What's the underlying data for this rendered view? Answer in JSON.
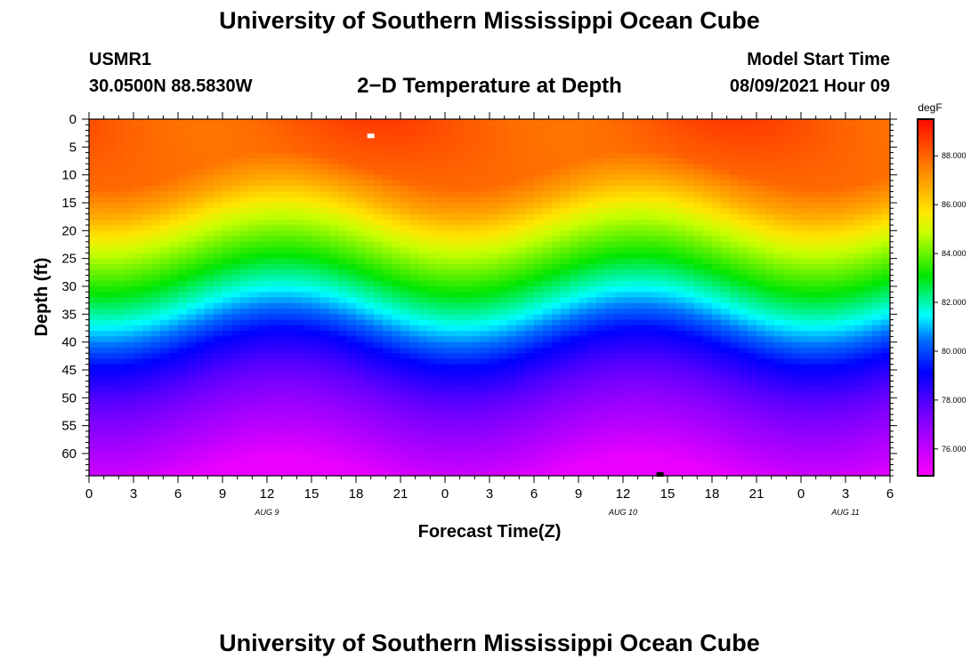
{
  "header": {
    "title": "University of Southern Mississippi Ocean Cube",
    "station": "USMR1",
    "coords": "30.0500N  88.5830W",
    "subtitle": "2−D Temperature at Depth",
    "model_label": "Model Start Time",
    "model_time": "08/09/2021 Hour 09"
  },
  "footer": {
    "title": "University of Southern Mississippi Ocean Cube"
  },
  "chart_data": {
    "type": "heatmap",
    "title": "2−D Temperature at Depth",
    "xlabel": "Forecast Time(Z)",
    "ylabel": "Depth (ft)",
    "x_ticks": [
      "0",
      "3",
      "6",
      "9",
      "12",
      "15",
      "18",
      "21",
      "0",
      "3",
      "6",
      "9",
      "12",
      "15",
      "18",
      "21",
      "0",
      "3",
      "6"
    ],
    "x_range_hours": [
      0,
      54
    ],
    "date_labels": [
      {
        "text": "AUG 9",
        "hour": 12
      },
      {
        "text": "AUG 10",
        "hour": 36
      },
      {
        "text": "AUG 11",
        "hour": 51
      }
    ],
    "y_ticks": [
      0,
      5,
      10,
      15,
      20,
      25,
      30,
      35,
      40,
      45,
      50,
      55,
      60
    ],
    "y_range_ft": [
      0,
      64
    ],
    "colorbar": {
      "unit": "degF",
      "ticks": [
        "76.000",
        "78.000",
        "80.000",
        "82.000",
        "84.000",
        "86.000",
        "88.000"
      ],
      "range": [
        74.9,
        89.5
      ]
    },
    "depth_profile": [
      {
        "depth": 0,
        "temp": 88.2
      },
      {
        "depth": 9,
        "temp": 87.9
      },
      {
        "depth": 14,
        "temp": 86.8
      },
      {
        "depth": 20,
        "temp": 85.0
      },
      {
        "depth": 27,
        "temp": 83.3
      },
      {
        "depth": 33,
        "temp": 81.7
      },
      {
        "depth": 37,
        "temp": 80.5
      },
      {
        "depth": 41,
        "temp": 79.2
      },
      {
        "depth": 47,
        "temp": 77.9
      },
      {
        "depth": 54,
        "temp": 76.8
      },
      {
        "depth": 60,
        "temp": 75.9
      },
      {
        "depth": 64,
        "temp": 75.3
      }
    ],
    "oscillation": {
      "period_hours": 24,
      "peak_hour": 13,
      "amplitude_ft": 3.5
    },
    "markers": [
      {
        "name": "max-marker",
        "hour": 19,
        "depth": 3,
        "color": "#ffffff"
      },
      {
        "name": "min-marker",
        "hour": 38.5,
        "depth": 64,
        "color": "#000000"
      }
    ]
  }
}
